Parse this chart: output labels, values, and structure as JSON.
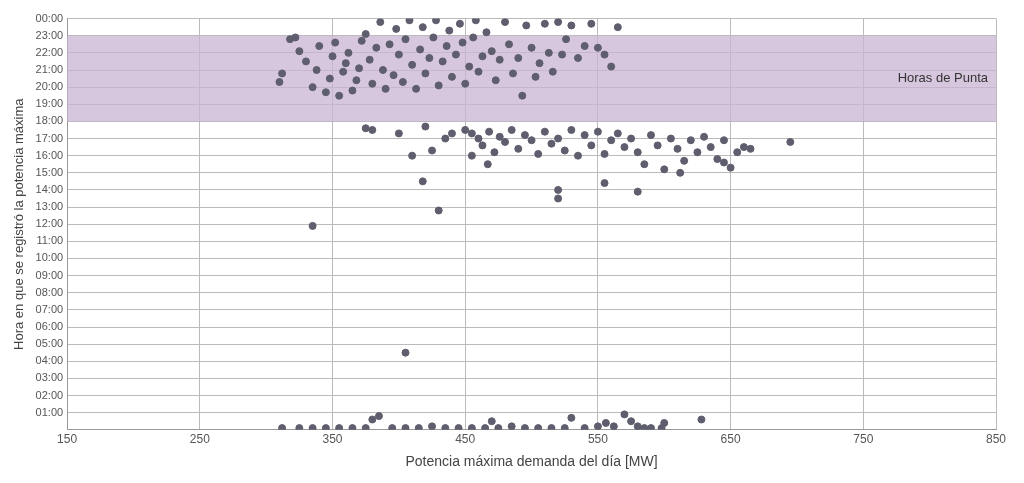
{
  "chart_data": {
    "type": "scatter",
    "xlabel": "Potencia máxima demanda del día [MW]",
    "ylabel": "Hora en que se registró la potencia máxima",
    "x": [
      310,
      312,
      318,
      322,
      325,
      330,
      335,
      338,
      340,
      345,
      348,
      350,
      352,
      355,
      358,
      360,
      362,
      365,
      368,
      370,
      372,
      375,
      378,
      380,
      383,
      386,
      388,
      390,
      393,
      396,
      398,
      400,
      403,
      405,
      408,
      410,
      413,
      416,
      418,
      420,
      423,
      426,
      428,
      430,
      433,
      436,
      438,
      440,
      443,
      446,
      448,
      450,
      453,
      456,
      458,
      460,
      463,
      466,
      470,
      473,
      476,
      480,
      483,
      486,
      490,
      493,
      496,
      500,
      503,
      506,
      510,
      513,
      516,
      520,
      523,
      526,
      530,
      535,
      540,
      545,
      550,
      555,
      560,
      565,
      450,
      455,
      460,
      463,
      468,
      472,
      476,
      480,
      485,
      490,
      495,
      500,
      505,
      510,
      515,
      520,
      525,
      530,
      535,
      540,
      545,
      550,
      555,
      560,
      565,
      570,
      575,
      580,
      585,
      590,
      595,
      600,
      605,
      610,
      615,
      620,
      625,
      630,
      635,
      640,
      645,
      650,
      655,
      660,
      665,
      645,
      612,
      335,
      405,
      430,
      418,
      520,
      520,
      555,
      580,
      695,
      380,
      375,
      400,
      410,
      425,
      420,
      440,
      435,
      467,
      455,
      312,
      325,
      335,
      345,
      355,
      365,
      375,
      380,
      385,
      395,
      405,
      415,
      425,
      435,
      445,
      455,
      465,
      470,
      475,
      485,
      495,
      505,
      515,
      525,
      530,
      540,
      550,
      556,
      562,
      570,
      575,
      580,
      585,
      590,
      598,
      600,
      628
    ],
    "values": [
      20.3,
      20.8,
      22.8,
      22.9,
      22.1,
      21.5,
      20.0,
      21.0,
      22.4,
      19.7,
      20.5,
      21.8,
      22.6,
      19.5,
      20.9,
      21.4,
      22.0,
      19.8,
      20.4,
      21.1,
      22.7,
      23.1,
      21.6,
      20.2,
      22.3,
      23.8,
      21.0,
      19.9,
      22.5,
      20.7,
      23.4,
      21.9,
      20.3,
      22.8,
      23.9,
      21.3,
      19.9,
      22.2,
      23.5,
      20.8,
      21.7,
      22.9,
      23.9,
      20.1,
      21.5,
      22.4,
      23.3,
      20.6,
      21.9,
      23.7,
      22.6,
      20.2,
      21.2,
      22.9,
      23.9,
      20.9,
      21.8,
      23.2,
      22.1,
      20.4,
      21.6,
      23.8,
      22.5,
      20.8,
      21.7,
      19.5,
      23.6,
      22.3,
      20.6,
      21.4,
      23.7,
      22.0,
      20.9,
      23.8,
      21.9,
      22.8,
      23.6,
      21.7,
      22.4,
      23.7,
      22.3,
      21.9,
      21.2,
      23.5,
      17.5,
      17.3,
      17.0,
      16.6,
      17.4,
      16.2,
      17.1,
      16.8,
      17.5,
      16.4,
      17.2,
      16.9,
      16.1,
      17.4,
      16.7,
      17.0,
      16.3,
      17.5,
      16.0,
      17.2,
      16.6,
      17.4,
      16.1,
      16.9,
      17.3,
      16.5,
      17.0,
      16.2,
      15.5,
      17.2,
      16.6,
      15.2,
      17.0,
      16.4,
      15.7,
      16.9,
      16.2,
      17.1,
      16.5,
      15.8,
      16.9,
      15.3,
      16.2,
      16.5,
      16.4,
      15.6,
      15.0,
      11.9,
      4.5,
      12.8,
      14.5,
      13.5,
      14.0,
      14.4,
      13.9,
      16.8,
      17.5,
      17.6,
      17.3,
      16.0,
      16.3,
      17.7,
      17.3,
      17.0,
      15.5,
      16.0,
      0.1,
      0.1,
      0.1,
      0.1,
      0.1,
      0.1,
      0.1,
      0.6,
      0.8,
      0.1,
      0.1,
      0.1,
      0.2,
      0.1,
      0.1,
      0.1,
      0.1,
      0.5,
      0.1,
      0.2,
      0.1,
      0.1,
      0.1,
      0.1,
      0.7,
      0.1,
      0.2,
      0.4,
      0.2,
      0.9,
      0.5,
      0.2,
      0.1,
      0.1,
      0.1,
      0.4,
      0.6
    ],
    "color": "#5e5e6e",
    "marker": "circle",
    "grid": true,
    "xlim": [
      150,
      850
    ],
    "xticks": [
      150,
      250,
      350,
      450,
      550,
      650,
      750,
      850
    ],
    "ylim": [
      0,
      24
    ],
    "yticks": [
      {
        "value": 0,
        "label": null
      },
      {
        "value": 1,
        "label": "01:00"
      },
      {
        "value": 2,
        "label": "02:00"
      },
      {
        "value": 3,
        "label": "03:00"
      },
      {
        "value": 4,
        "label": "04:00"
      },
      {
        "value": 5,
        "label": "05:00"
      },
      {
        "value": 6,
        "label": "06:00"
      },
      {
        "value": 7,
        "label": "07:00"
      },
      {
        "value": 8,
        "label": "08:00"
      },
      {
        "value": 9,
        "label": "09:00"
      },
      {
        "value": 10,
        "label": "10:00"
      },
      {
        "value": 11,
        "label": "11:00"
      },
      {
        "value": 12,
        "label": "12:00"
      },
      {
        "value": 13,
        "label": "13:00"
      },
      {
        "value": 14,
        "label": "14:00"
      },
      {
        "value": 15,
        "label": "15:00"
      },
      {
        "value": 16,
        "label": "16:00"
      },
      {
        "value": 17,
        "label": "17:00"
      },
      {
        "value": 18,
        "label": "18:00"
      },
      {
        "value": 19,
        "label": "19:00"
      },
      {
        "value": 20,
        "label": "20:00"
      },
      {
        "value": 21,
        "label": "21:00"
      },
      {
        "value": 22,
        "label": "22:00"
      },
      {
        "value": 23,
        "label": "23:00"
      },
      {
        "value": 24,
        "label": "00:00"
      }
    ],
    "bands": [
      {
        "axis": "y",
        "from": 18,
        "to": 23,
        "label": "Horas de Punta",
        "color": "#c8b4d4"
      }
    ]
  }
}
